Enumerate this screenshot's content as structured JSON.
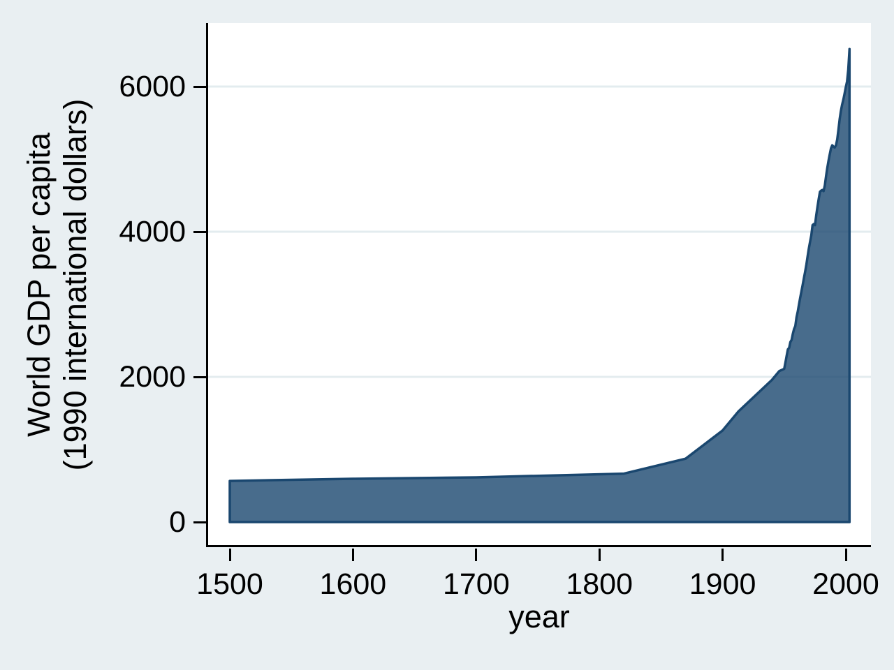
{
  "chart_data": {
    "type": "area",
    "title": "",
    "xlabel": "year",
    "ylabel_lines": [
      "World GDP per capita",
      "(1990 international dollars)"
    ],
    "x_ticks": [
      1500,
      1600,
      1700,
      1800,
      1900,
      2000
    ],
    "x_tick_labels": [
      "1500",
      "1600",
      "1700",
      "1800",
      "1900",
      "2000"
    ],
    "y_ticks": [
      0,
      2000,
      4000,
      6000
    ],
    "y_tick_labels": [
      "0",
      "2000",
      "4000",
      "6000"
    ],
    "y_gridlines": [
      2000,
      4000,
      6000
    ],
    "xlim": [
      1482,
      2020
    ],
    "ylim": [
      -340,
      6880
    ],
    "grid": "horizontal-only",
    "legend": "none",
    "colors": {
      "fill": "rgba(26,71,111,0.8)",
      "line": "#1A476F",
      "grid": "#E3ECEF",
      "background": "#E9EFF2",
      "plot_background": "#FFFFFF",
      "axis": "#000000",
      "text": "#000000"
    },
    "series": [
      {
        "name": "World GDP per capita",
        "points": [
          [
            1500,
            566
          ],
          [
            1600,
            596
          ],
          [
            1700,
            615
          ],
          [
            1820,
            667
          ],
          [
            1870,
            873
          ],
          [
            1900,
            1262
          ],
          [
            1913,
            1526
          ],
          [
            1940,
            1958
          ],
          [
            1946,
            2080
          ],
          [
            1950,
            2111
          ],
          [
            1951,
            2200
          ],
          [
            1952,
            2290
          ],
          [
            1953,
            2380
          ],
          [
            1954,
            2400
          ],
          [
            1955,
            2480
          ],
          [
            1956,
            2510
          ],
          [
            1957,
            2590
          ],
          [
            1958,
            2660
          ],
          [
            1959,
            2700
          ],
          [
            1960,
            2820
          ],
          [
            1961,
            2900
          ],
          [
            1962,
            3000
          ],
          [
            1963,
            3090
          ],
          [
            1964,
            3180
          ],
          [
            1965,
            3270
          ],
          [
            1966,
            3360
          ],
          [
            1967,
            3450
          ],
          [
            1968,
            3550
          ],
          [
            1969,
            3660
          ],
          [
            1970,
            3770
          ],
          [
            1971,
            3860
          ],
          [
            1972,
            3950
          ],
          [
            1973,
            4090
          ],
          [
            1974,
            4105
          ],
          [
            1975,
            4090
          ],
          [
            1976,
            4230
          ],
          [
            1977,
            4340
          ],
          [
            1978,
            4450
          ],
          [
            1979,
            4550
          ],
          [
            1980,
            4565
          ],
          [
            1981,
            4575
          ],
          [
            1982,
            4560
          ],
          [
            1983,
            4640
          ],
          [
            1984,
            4770
          ],
          [
            1985,
            4880
          ],
          [
            1986,
            4980
          ],
          [
            1987,
            5070
          ],
          [
            1988,
            5150
          ],
          [
            1989,
            5190
          ],
          [
            1990,
            5170
          ],
          [
            1991,
            5160
          ],
          [
            1992,
            5190
          ],
          [
            1993,
            5270
          ],
          [
            1994,
            5400
          ],
          [
            1995,
            5550
          ],
          [
            1996,
            5660
          ],
          [
            1997,
            5750
          ],
          [
            1998,
            5820
          ],
          [
            1999,
            5900
          ],
          [
            2000,
            5990
          ],
          [
            2001,
            6070
          ],
          [
            2002,
            6230
          ],
          [
            2003,
            6516
          ]
        ]
      }
    ]
  }
}
